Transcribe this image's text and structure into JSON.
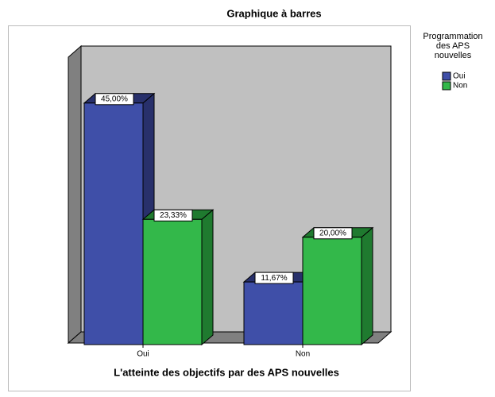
{
  "chart_data": {
    "type": "bar3d",
    "title": "Graphique à barres",
    "x_label": "L'atteinte des objectifs par des APS nouvelles",
    "categories": [
      "Oui",
      "Non"
    ],
    "legend_title": [
      "Programmation",
      "des APS",
      "nouvelles"
    ],
    "legend_position": "right",
    "series": [
      {
        "name": "Oui",
        "color": "#3f4fa8",
        "side_color": "#28306b",
        "values": [
          45,
          11.67
        ],
        "value_labels": [
          "45,00%",
          "11,67%"
        ]
      },
      {
        "name": "Non",
        "color": "#33b84a",
        "side_color": "#1f7a2f",
        "values": [
          23.33,
          20
        ],
        "value_labels": [
          "23,33%",
          "20,00%"
        ]
      }
    ]
  }
}
